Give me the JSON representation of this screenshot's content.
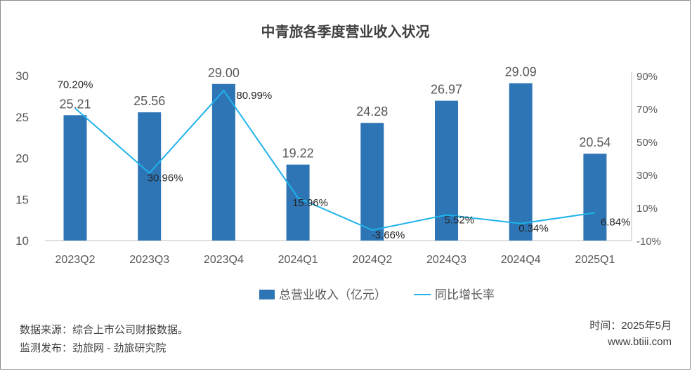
{
  "chart_data": {
    "type": "bar+line",
    "title": "中青旅各季度营业收入状况",
    "categories": [
      "2023Q2",
      "2023Q3",
      "2023Q4",
      "2024Q1",
      "2024Q2",
      "2024Q3",
      "2024Q4",
      "2025Q1"
    ],
    "series": [
      {
        "name": "总营业收入（亿元）",
        "type": "bar",
        "axis": "left",
        "color": "#2e75b6",
        "values": [
          25.21,
          25.56,
          29.0,
          19.22,
          24.28,
          26.97,
          29.09,
          20.54
        ],
        "labels": [
          "25.21",
          "25.56",
          "29.00",
          "19.22",
          "24.28",
          "26.97",
          "29.09",
          "20.54"
        ]
      },
      {
        "name": "同比增长率",
        "type": "line",
        "axis": "right",
        "color": "#1fb3ea",
        "values": [
          70.2,
          30.96,
          80.99,
          15.96,
          -3.66,
          5.52,
          0.34,
          6.84
        ],
        "labels": [
          "70.20%",
          "30.96%",
          "80.99%",
          "15.96%",
          "-3.66%",
          "5.52%",
          "0.34%",
          "6.84%"
        ]
      }
    ],
    "left_axis": {
      "range": [
        10,
        30
      ],
      "ticks": [
        "10",
        "15",
        "20",
        "25",
        "30"
      ]
    },
    "right_axis": {
      "range": [
        -10,
        90
      ],
      "ticks": [
        "-10%",
        "10%",
        "30%",
        "50%",
        "70%",
        "90%"
      ]
    },
    "legend": "bottom-center",
    "grid": false
  },
  "footer": {
    "source": "数据来源：综合上市公司财报数据。",
    "monitor": "监测发布：劲旅网 - 劲旅研究院",
    "time": "时间：2025年5月",
    "site": "www.btiii.com"
  }
}
